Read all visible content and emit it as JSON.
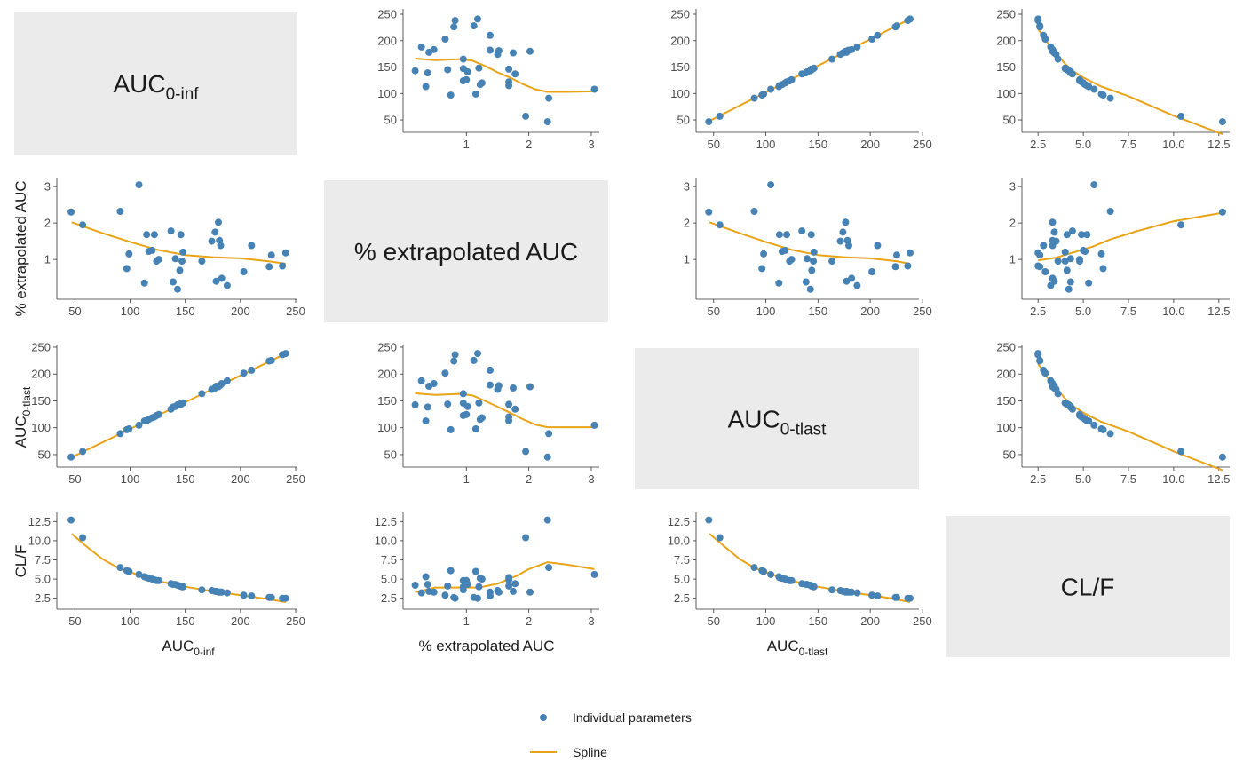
{
  "chart_data": {
    "type": "scatter",
    "layout": "scatterplot-matrix",
    "variables": [
      {
        "key": "auc_inf",
        "label": "AUC",
        "label_sub": "0-inf",
        "ticks": [
          50,
          100,
          150,
          200,
          250
        ],
        "range": [
          40,
          250
        ]
      },
      {
        "key": "pct_extrap",
        "label": "% extrapolated AUC",
        "label_sub": "",
        "ticks": [
          1,
          2,
          3
        ],
        "range": [
          0.1,
          3.1
        ]
      },
      {
        "key": "auc_tlast",
        "label": "AUC",
        "label_sub": "0-tlast",
        "ticks": [
          50,
          100,
          150,
          200,
          250
        ],
        "range": [
          40,
          245
        ]
      },
      {
        "key": "clf",
        "label": "CL/F",
        "label_sub": "",
        "ticks": [
          2.5,
          5.0,
          7.5,
          10.0,
          12.5
        ],
        "range": [
          2.0,
          13.0
        ]
      }
    ],
    "tick_labels": {
      "auc": [
        "50",
        "100",
        "150",
        "200",
        "250"
      ],
      "pct": [
        "1",
        "2",
        "3"
      ],
      "clf": [
        "2.5",
        "5.0",
        "7.5",
        "10.0",
        "12.5"
      ]
    },
    "observations": [
      [
        46.5,
        2.3,
        45.4,
        12.7
      ],
      [
        57.0,
        1.95,
        55.9,
        10.4
      ],
      [
        91.0,
        2.32,
        88.9,
        6.5
      ],
      [
        97.0,
        0.75,
        96.3,
        6.1
      ],
      [
        99.0,
        1.15,
        97.9,
        6.0
      ],
      [
        108.0,
        3.05,
        104.7,
        5.6
      ],
      [
        113.0,
        0.35,
        112.6,
        5.3
      ],
      [
        115.0,
        1.68,
        113.1,
        5.2
      ],
      [
        117.0,
        1.22,
        115.6,
        5.1
      ],
      [
        120.0,
        1.25,
        118.5,
        5.0
      ],
      [
        122.0,
        1.68,
        120.0,
        4.9
      ],
      [
        124.0,
        0.95,
        122.8,
        4.8
      ],
      [
        126.0,
        1.0,
        124.7,
        4.8
      ],
      [
        137.0,
        1.78,
        134.6,
        4.4
      ],
      [
        139.0,
        0.38,
        138.5,
        4.3
      ],
      [
        141.0,
        1.02,
        139.6,
        4.3
      ],
      [
        143.0,
        0.18,
        142.7,
        4.2
      ],
      [
        145.0,
        0.7,
        144.0,
        4.1
      ],
      [
        146.0,
        1.68,
        143.5,
        4.1
      ],
      [
        147.0,
        0.95,
        145.6,
        4.0
      ],
      [
        148.0,
        1.2,
        146.2,
        4.0
      ],
      [
        165.0,
        0.95,
        163.4,
        3.6
      ],
      [
        174.0,
        1.5,
        171.4,
        3.5
      ],
      [
        177.0,
        1.75,
        173.9,
        3.4
      ],
      [
        178.0,
        0.4,
        177.3,
        3.4
      ],
      [
        180.0,
        2.02,
        176.4,
        3.3
      ],
      [
        181.0,
        1.52,
        178.2,
        3.3
      ],
      [
        182.0,
        1.38,
        179.5,
        3.3
      ],
      [
        183.0,
        0.48,
        182.1,
        3.3
      ],
      [
        188.0,
        0.28,
        187.5,
        3.2
      ],
      [
        203.0,
        0.66,
        201.7,
        2.9
      ],
      [
        210.0,
        1.38,
        207.1,
        2.8
      ],
      [
        226.0,
        0.8,
        224.2,
        2.6
      ],
      [
        228.0,
        1.12,
        225.4,
        2.6
      ],
      [
        238.0,
        0.82,
        236.0,
        2.5
      ],
      [
        241.0,
        1.18,
        238.2,
        2.5
      ]
    ],
    "splines": {
      "auc_inf|pct_extrap": [
        [
          47,
          2.02
        ],
        [
          75,
          1.72
        ],
        [
          100,
          1.48
        ],
        [
          125,
          1.26
        ],
        [
          150,
          1.12
        ],
        [
          175,
          1.06
        ],
        [
          200,
          1.03
        ],
        [
          225,
          0.95
        ],
        [
          241,
          0.88
        ]
      ],
      "auc_inf|auc_tlast": [
        [
          47,
          45
        ],
        [
          241,
          238
        ]
      ],
      "auc_inf|clf": [
        [
          47,
          10.9
        ],
        [
          60,
          9.3
        ],
        [
          75,
          7.6
        ],
        [
          90,
          6.4
        ],
        [
          110,
          5.4
        ],
        [
          130,
          4.6
        ],
        [
          150,
          4.0
        ],
        [
          175,
          3.4
        ],
        [
          200,
          2.9
        ],
        [
          220,
          2.5
        ],
        [
          241,
          2.0
        ]
      ],
      "pct_extrap|auc_inf": [
        [
          0.18,
          166
        ],
        [
          0.5,
          163
        ],
        [
          0.9,
          165
        ],
        [
          1.1,
          162
        ],
        [
          1.3,
          152
        ],
        [
          1.5,
          140
        ],
        [
          1.7,
          130
        ],
        [
          1.9,
          118
        ],
        [
          2.1,
          108
        ],
        [
          2.3,
          103
        ],
        [
          2.6,
          103
        ],
        [
          3.05,
          104
        ]
      ],
      "pct_extrap|auc_tlast": [
        [
          0.18,
          164
        ],
        [
          0.5,
          161
        ],
        [
          0.9,
          163
        ],
        [
          1.1,
          160
        ],
        [
          1.3,
          150
        ],
        [
          1.5,
          139
        ],
        [
          1.7,
          128
        ],
        [
          1.9,
          116
        ],
        [
          2.1,
          106
        ],
        [
          2.3,
          101
        ],
        [
          2.6,
          101
        ],
        [
          3.05,
          101
        ]
      ],
      "pct_extrap|clf": [
        [
          0.18,
          3.3
        ],
        [
          0.5,
          3.9
        ],
        [
          0.9,
          3.9
        ],
        [
          1.2,
          3.9
        ],
        [
          1.5,
          4.4
        ],
        [
          1.8,
          5.4
        ],
        [
          2.0,
          6.3
        ],
        [
          2.3,
          7.2
        ],
        [
          2.6,
          6.9
        ],
        [
          3.05,
          6.3
        ]
      ],
      "auc_tlast|auc_inf": [
        [
          45,
          47
        ],
        [
          238,
          241
        ]
      ],
      "auc_tlast|pct_extrap": [
        [
          46,
          2.02
        ],
        [
          75,
          1.72
        ],
        [
          100,
          1.48
        ],
        [
          125,
          1.26
        ],
        [
          150,
          1.12
        ],
        [
          175,
          1.06
        ],
        [
          200,
          1.03
        ],
        [
          225,
          0.95
        ],
        [
          238,
          0.88
        ]
      ],
      "auc_tlast|clf": [
        [
          46,
          10.9
        ],
        [
          60,
          9.3
        ],
        [
          75,
          7.6
        ],
        [
          90,
          6.4
        ],
        [
          110,
          5.4
        ],
        [
          130,
          4.6
        ],
        [
          150,
          4.0
        ],
        [
          175,
          3.4
        ],
        [
          200,
          2.9
        ],
        [
          220,
          2.5
        ],
        [
          238,
          2.0
        ]
      ],
      "clf|auc_inf": [
        [
          2.5,
          222
        ],
        [
          3.0,
          197
        ],
        [
          3.5,
          176
        ],
        [
          4.0,
          156
        ],
        [
          4.5,
          141
        ],
        [
          5.0,
          130
        ],
        [
          6.0,
          113
        ],
        [
          7.5,
          95
        ],
        [
          10.0,
          58
        ],
        [
          12.7,
          23
        ]
      ],
      "clf|pct_extrap": [
        [
          2.5,
          0.97
        ],
        [
          3.5,
          1.05
        ],
        [
          4.5,
          1.2
        ],
        [
          5.5,
          1.35
        ],
        [
          6.5,
          1.55
        ],
        [
          8.0,
          1.78
        ],
        [
          10.0,
          2.05
        ],
        [
          12.7,
          2.28
        ]
      ],
      "clf|auc_tlast": [
        [
          2.5,
          219
        ],
        [
          3.0,
          194
        ],
        [
          3.5,
          174
        ],
        [
          4.0,
          154
        ],
        [
          4.5,
          139
        ],
        [
          5.0,
          128
        ],
        [
          6.0,
          111
        ],
        [
          7.5,
          93
        ],
        [
          10.0,
          56
        ],
        [
          12.7,
          21
        ]
      ]
    },
    "colors": {
      "points": "#4682b4",
      "spline": "#e8a317",
      "diag_bg": "#ebebeb",
      "axis": "#333333"
    },
    "legend": {
      "placement": "bottom",
      "points_label": "Individual parameters",
      "line_label": "Spline"
    }
  }
}
